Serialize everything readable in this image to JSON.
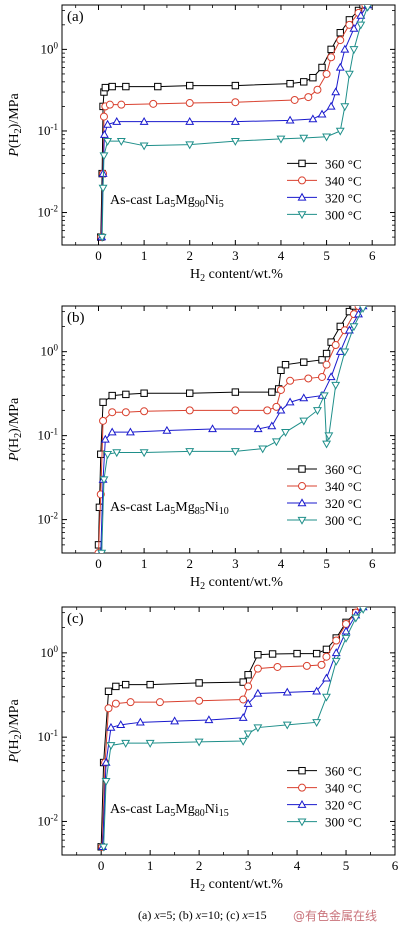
{
  "chart_data": [
    {
      "type": "line",
      "panel_label": "(a)",
      "sample_prefix": "As-cast La",
      "sample_sub": [
        "5",
        "90",
        "5"
      ],
      "xlabel_main": "H",
      "xlabel_sub": "2",
      "xlabel_tail": " content/wt.%",
      "ylabel": "P(H2)/MPa",
      "xlim": [
        -0.8,
        6.5
      ],
      "ylim": [
        0.004,
        3.5
      ],
      "yscale": "log",
      "xticks": [
        0,
        1,
        2,
        3,
        4,
        5,
        6
      ],
      "series": [
        {
          "name": "360 °C",
          "color": "#000000",
          "marker": "square",
          "points": [
            [
              0.05,
              0.005
            ],
            [
              0.08,
              0.03
            ],
            [
              0.1,
              0.2
            ],
            [
              0.12,
              0.3
            ],
            [
              0.15,
              0.34
            ],
            [
              0.3,
              0.35
            ],
            [
              0.6,
              0.35
            ],
            [
              1.3,
              0.35
            ],
            [
              2.0,
              0.36
            ],
            [
              3.0,
              0.36
            ],
            [
              4.2,
              0.38
            ],
            [
              4.5,
              0.4
            ],
            [
              4.7,
              0.45
            ],
            [
              4.9,
              0.6
            ],
            [
              5.1,
              1.0
            ],
            [
              5.3,
              1.6
            ],
            [
              5.5,
              2.3
            ],
            [
              5.7,
              3.0
            ],
            [
              5.8,
              3.5
            ]
          ]
        },
        {
          "name": "340 °C",
          "color": "#d9412f",
          "marker": "circle",
          "points": [
            [
              0.06,
              0.005
            ],
            [
              0.1,
              0.03
            ],
            [
              0.12,
              0.15
            ],
            [
              0.15,
              0.2
            ],
            [
              0.25,
              0.21
            ],
            [
              0.5,
              0.21
            ],
            [
              1.2,
              0.215
            ],
            [
              2.0,
              0.22
            ],
            [
              3.0,
              0.225
            ],
            [
              4.3,
              0.24
            ],
            [
              4.6,
              0.26
            ],
            [
              4.8,
              0.32
            ],
            [
              5.0,
              0.5
            ],
            [
              5.1,
              0.8
            ],
            [
              5.3,
              1.3
            ],
            [
              5.5,
              2.0
            ],
            [
              5.7,
              2.8
            ],
            [
              5.85,
              3.5
            ]
          ]
        },
        {
          "name": "320 °C",
          "color": "#1a1acd",
          "marker": "triangle-up",
          "points": [
            [
              0.07,
              0.005
            ],
            [
              0.1,
              0.03
            ],
            [
              0.13,
              0.09
            ],
            [
              0.2,
              0.12
            ],
            [
              0.4,
              0.13
            ],
            [
              1.0,
              0.13
            ],
            [
              2.0,
              0.13
            ],
            [
              3.0,
              0.13
            ],
            [
              4.2,
              0.135
            ],
            [
              4.7,
              0.14
            ],
            [
              4.9,
              0.16
            ],
            [
              5.1,
              0.2
            ],
            [
              5.2,
              0.3
            ],
            [
              5.3,
              0.6
            ],
            [
              5.4,
              1.0
            ],
            [
              5.6,
              1.8
            ],
            [
              5.75,
              2.6
            ],
            [
              5.9,
              3.5
            ]
          ]
        },
        {
          "name": "300 °C",
          "color": "#1f8f8a",
          "marker": "triangle-down",
          "points": [
            [
              0.08,
              0.005
            ],
            [
              0.1,
              0.02
            ],
            [
              0.12,
              0.05
            ],
            [
              0.2,
              0.075
            ],
            [
              0.5,
              0.075
            ],
            [
              1.0,
              0.066
            ],
            [
              2.0,
              0.068
            ],
            [
              3.0,
              0.075
            ],
            [
              4.0,
              0.08
            ],
            [
              4.5,
              0.082
            ],
            [
              5.0,
              0.085
            ],
            [
              5.3,
              0.1
            ],
            [
              5.4,
              0.2
            ],
            [
              5.5,
              0.5
            ],
            [
              5.6,
              1.0
            ],
            [
              5.75,
              2.0
            ],
            [
              5.9,
              3.3
            ]
          ]
        }
      ]
    },
    {
      "type": "line",
      "panel_label": "(b)",
      "sample_prefix": "As-cast La",
      "sample_sub": [
        "5",
        "85",
        "10"
      ],
      "xlabel_main": "H",
      "xlabel_sub": "2",
      "xlabel_tail": " content/wt.%",
      "ylabel": "P(H2)/MPa",
      "xlim": [
        -0.8,
        6.5
      ],
      "ylim": [
        0.004,
        3.5
      ],
      "yscale": "log",
      "xticks": [
        0,
        1,
        2,
        3,
        4,
        5,
        6
      ],
      "series": [
        {
          "name": "360 °C",
          "color": "#000000",
          "marker": "square",
          "points": [
            [
              0.0,
              0.005
            ],
            [
              0.02,
              0.014
            ],
            [
              0.05,
              0.06
            ],
            [
              0.1,
              0.25
            ],
            [
              0.3,
              0.3
            ],
            [
              0.6,
              0.31
            ],
            [
              1.0,
              0.32
            ],
            [
              2.0,
              0.32
            ],
            [
              3.0,
              0.33
            ],
            [
              3.8,
              0.33
            ],
            [
              3.95,
              0.36
            ],
            [
              4.0,
              0.6
            ],
            [
              4.1,
              0.7
            ],
            [
              4.5,
              0.75
            ],
            [
              4.9,
              0.8
            ],
            [
              5.0,
              0.95
            ],
            [
              5.1,
              1.3
            ],
            [
              5.3,
              2.0
            ],
            [
              5.5,
              3.0
            ],
            [
              5.6,
              3.5
            ]
          ]
        },
        {
          "name": "340 °C",
          "color": "#d9412f",
          "marker": "circle",
          "points": [
            [
              0.0,
              0.004
            ],
            [
              0.05,
              0.02
            ],
            [
              0.1,
              0.15
            ],
            [
              0.3,
              0.19
            ],
            [
              0.6,
              0.19
            ],
            [
              1.0,
              0.195
            ],
            [
              2.0,
              0.2
            ],
            [
              3.0,
              0.2
            ],
            [
              3.7,
              0.2
            ],
            [
              3.9,
              0.22
            ],
            [
              4.0,
              0.35
            ],
            [
              4.2,
              0.45
            ],
            [
              4.6,
              0.48
            ],
            [
              4.9,
              0.5
            ],
            [
              5.0,
              0.7
            ],
            [
              5.2,
              1.2
            ],
            [
              5.4,
              1.8
            ],
            [
              5.6,
              2.8
            ],
            [
              5.7,
              3.5
            ]
          ]
        },
        {
          "name": "320 °C",
          "color": "#1a1acd",
          "marker": "triangle-up",
          "points": [
            [
              0.05,
              0.004
            ],
            [
              0.1,
              0.03
            ],
            [
              0.15,
              0.09
            ],
            [
              0.3,
              0.11
            ],
            [
              0.7,
              0.11
            ],
            [
              1.5,
              0.115
            ],
            [
              2.5,
              0.12
            ],
            [
              3.5,
              0.12
            ],
            [
              3.8,
              0.13
            ],
            [
              4.0,
              0.2
            ],
            [
              4.2,
              0.25
            ],
            [
              4.5,
              0.28
            ],
            [
              4.9,
              0.3
            ],
            [
              5.1,
              0.5
            ],
            [
              5.3,
              1.0
            ],
            [
              5.5,
              1.8
            ],
            [
              5.7,
              2.8
            ],
            [
              5.8,
              3.5
            ]
          ]
        },
        {
          "name": "300 °C",
          "color": "#1f8f8a",
          "marker": "triangle-down",
          "points": [
            [
              0.07,
              0.004
            ],
            [
              0.12,
              0.03
            ],
            [
              0.2,
              0.06
            ],
            [
              0.4,
              0.063
            ],
            [
              1.0,
              0.063
            ],
            [
              2.0,
              0.065
            ],
            [
              3.0,
              0.065
            ],
            [
              3.6,
              0.07
            ],
            [
              3.9,
              0.085
            ],
            [
              4.1,
              0.11
            ],
            [
              4.5,
              0.15
            ],
            [
              4.8,
              0.2
            ],
            [
              4.95,
              0.3
            ],
            [
              5.0,
              0.08
            ],
            [
              5.05,
              0.1
            ],
            [
              5.2,
              0.4
            ],
            [
              5.4,
              1.0
            ],
            [
              5.6,
              2.0
            ],
            [
              5.8,
              3.3
            ]
          ]
        }
      ]
    },
    {
      "type": "line",
      "panel_label": "(c)",
      "sample_prefix": "As-cast La",
      "sample_sub": [
        "5",
        "80",
        "15"
      ],
      "xlabel_main": "H",
      "xlabel_sub": "2",
      "xlabel_tail": " content/wt.%",
      "ylabel": "P(H2)/MPa",
      "xlim": [
        -0.8,
        6
      ],
      "ylim": [
        0.004,
        3.5
      ],
      "yscale": "log",
      "xticks": [
        0,
        1,
        2,
        3,
        4,
        5,
        6
      ],
      "series": [
        {
          "name": "360 °C",
          "color": "#000000",
          "marker": "square",
          "points": [
            [
              0.0,
              0.005
            ],
            [
              0.05,
              0.05
            ],
            [
              0.15,
              0.35
            ],
            [
              0.3,
              0.4
            ],
            [
              0.5,
              0.42
            ],
            [
              1.0,
              0.42
            ],
            [
              2.0,
              0.44
            ],
            [
              2.9,
              0.45
            ],
            [
              3.0,
              0.55
            ],
            [
              3.2,
              0.95
            ],
            [
              3.5,
              0.97
            ],
            [
              4.0,
              0.98
            ],
            [
              4.4,
              0.98
            ],
            [
              4.6,
              1.1
            ],
            [
              4.8,
              1.5
            ],
            [
              5.0,
              2.3
            ],
            [
              5.2,
              3.0
            ],
            [
              5.3,
              3.5
            ]
          ]
        },
        {
          "name": "340 °C",
          "color": "#d9412f",
          "marker": "circle",
          "points": [
            [
              0.02,
              0.005
            ],
            [
              0.08,
              0.05
            ],
            [
              0.15,
              0.22
            ],
            [
              0.3,
              0.25
            ],
            [
              0.6,
              0.26
            ],
            [
              1.2,
              0.26
            ],
            [
              2.0,
              0.27
            ],
            [
              2.9,
              0.28
            ],
            [
              3.0,
              0.4
            ],
            [
              3.2,
              0.65
            ],
            [
              3.6,
              0.68
            ],
            [
              4.2,
              0.7
            ],
            [
              4.5,
              0.72
            ],
            [
              4.6,
              0.9
            ],
            [
              4.8,
              1.4
            ],
            [
              5.0,
              2.2
            ],
            [
              5.2,
              3.0
            ],
            [
              5.3,
              3.5
            ]
          ]
        },
        {
          "name": "320 °C",
          "color": "#1a1acd",
          "marker": "triangle-up",
          "points": [
            [
              0.03,
              0.005
            ],
            [
              0.1,
              0.05
            ],
            [
              0.2,
              0.13
            ],
            [
              0.4,
              0.14
            ],
            [
              0.8,
              0.15
            ],
            [
              1.5,
              0.155
            ],
            [
              2.2,
              0.16
            ],
            [
              2.9,
              0.17
            ],
            [
              3.0,
              0.25
            ],
            [
              3.2,
              0.33
            ],
            [
              3.8,
              0.34
            ],
            [
              4.4,
              0.35
            ],
            [
              4.6,
              0.5
            ],
            [
              4.8,
              1.0
            ],
            [
              5.0,
              1.8
            ],
            [
              5.2,
              2.8
            ],
            [
              5.35,
              3.5
            ]
          ]
        },
        {
          "name": "300 °C",
          "color": "#1f8f8a",
          "marker": "triangle-down",
          "points": [
            [
              0.05,
              0.005
            ],
            [
              0.1,
              0.03
            ],
            [
              0.2,
              0.08
            ],
            [
              0.5,
              0.085
            ],
            [
              1.0,
              0.085
            ],
            [
              2.0,
              0.088
            ],
            [
              2.9,
              0.09
            ],
            [
              3.0,
              0.11
            ],
            [
              3.2,
              0.13
            ],
            [
              3.8,
              0.14
            ],
            [
              4.4,
              0.15
            ],
            [
              4.6,
              0.3
            ],
            [
              4.8,
              0.8
            ],
            [
              5.0,
              1.5
            ],
            [
              5.2,
              2.6
            ],
            [
              5.35,
              3.3
            ]
          ]
        }
      ]
    }
  ],
  "caption": {
    "text_a": "(a) ",
    "var_a": "x",
    "val_a": "=5; (b) ",
    "var_b": "x",
    "val_b": "=10; (c) ",
    "var_c": "x",
    "val_c": "=15"
  },
  "watermark": "@有色金属在线"
}
